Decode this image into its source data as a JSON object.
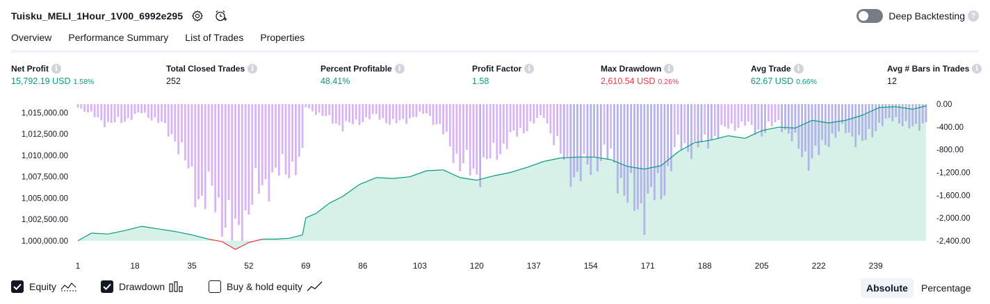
{
  "header": {
    "strategy_title": "Tuisku_MELI_1Hour_1V00_6992e295",
    "deep_backtesting_label": "Deep Backtesting",
    "help_glyph": "?"
  },
  "tabs": [
    {
      "label": "Overview",
      "active": true
    },
    {
      "label": "Performance Summary",
      "active": false
    },
    {
      "label": "List of Trades",
      "active": false
    },
    {
      "label": "Properties",
      "active": false
    }
  ],
  "metrics": [
    {
      "label": "Net Profit",
      "value": "15,792.19 USD",
      "pct": "1.58%",
      "tone": "pos"
    },
    {
      "label": "Total Closed Trades",
      "value": "252",
      "pct": "",
      "tone": "neutral"
    },
    {
      "label": "Percent Profitable",
      "value": "48.41%",
      "pct": "",
      "tone": "pos"
    },
    {
      "label": "Profit Factor",
      "value": "1.58",
      "pct": "",
      "tone": "pos"
    },
    {
      "label": "Max Drawdown",
      "value": "2,610.54 USD",
      "pct": "0.26%",
      "tone": "neg"
    },
    {
      "label": "Avg Trade",
      "value": "62.67 USD",
      "pct": "0.66%",
      "tone": "pos"
    },
    {
      "label": "Avg # Bars in Trades",
      "value": "12",
      "pct": "",
      "tone": "neutral"
    }
  ],
  "chart_data": {
    "type": "area",
    "x_ticks": [
      "1",
      "18",
      "35",
      "52",
      "69",
      "86",
      "103",
      "120",
      "137",
      "154",
      "171",
      "188",
      "205",
      "222",
      "239"
    ],
    "left_axis_ticks": [
      "1,015,000.00",
      "1,012,500.00",
      "1,010,000.00",
      "1,007,500.00",
      "1,005,000.00",
      "1,002,500.00",
      "1,000,000.00"
    ],
    "right_axis_ticks": [
      "0.00",
      "-400.00",
      "-800.00",
      "-1,200.00",
      "-1,600.00",
      "-2,000.00",
      "-2,400.00"
    ],
    "equity_ylim": [
      1000000,
      1016000
    ],
    "drawdown_ylim": [
      -2400,
      0
    ],
    "equity_color": "#089981",
    "equity_loss_color": "#f23645",
    "equity_fill": "#d2efe6",
    "drawdown_color": "#d8b4f4",
    "drawdown_overlap_color": "#b3b3ea",
    "series": [
      {
        "name": "Equity",
        "x": [
          1,
          5,
          10,
          15,
          20,
          25,
          30,
          35,
          40,
          44,
          48,
          52,
          56,
          60,
          64,
          68,
          69,
          72,
          76,
          80,
          85,
          90,
          95,
          100,
          105,
          110,
          115,
          120,
          125,
          130,
          135,
          140,
          145,
          150,
          155,
          160,
          165,
          170,
          175,
          180,
          185,
          190,
          195,
          200,
          205,
          210,
          215,
          220,
          225,
          230,
          235,
          240,
          245,
          250,
          254
        ],
        "values": [
          1000000,
          1000900,
          1000800,
          1001200,
          1001700,
          1001400,
          1001100,
          1000700,
          1000200,
          999900,
          999000,
          999800,
          1000200,
          1000200,
          1000300,
          1000700,
          1002700,
          1003200,
          1004400,
          1005200,
          1006600,
          1007400,
          1007300,
          1007500,
          1008200,
          1008300,
          1007400,
          1007100,
          1007600,
          1008000,
          1008600,
          1009300,
          1009700,
          1009800,
          1009800,
          1009500,
          1008700,
          1008400,
          1008800,
          1010400,
          1011500,
          1011800,
          1012300,
          1012000,
          1012900,
          1013300,
          1013200,
          1014100,
          1013800,
          1014100,
          1014700,
          1015600,
          1015700,
          1015400,
          1015800
        ]
      },
      {
        "name": "Drawdown",
        "x": [
          1,
          5,
          10,
          15,
          20,
          25,
          30,
          35,
          38,
          41,
          44,
          48,
          52,
          56,
          60,
          64,
          68,
          69,
          72,
          76,
          80,
          85,
          90,
          95,
          100,
          105,
          110,
          115,
          120,
          125,
          130,
          135,
          140,
          145,
          150,
          155,
          160,
          165,
          170,
          175,
          180,
          185,
          190,
          195,
          200,
          205,
          210,
          215,
          220,
          225,
          230,
          235,
          240,
          245,
          250,
          254
        ],
        "values": [
          -50,
          -180,
          -350,
          -280,
          -150,
          -300,
          -600,
          -1300,
          -1700,
          -1550,
          -1900,
          -2400,
          -1800,
          -1400,
          -1250,
          -1100,
          -1000,
          -50,
          -150,
          -250,
          -400,
          -300,
          -200,
          -350,
          -250,
          -150,
          -500,
          -1050,
          -1200,
          -900,
          -600,
          -400,
          -200,
          -900,
          -1300,
          -1000,
          -900,
          -1700,
          -1800,
          -1500,
          -700,
          -800,
          -600,
          -400,
          -350,
          -500,
          -300,
          -700,
          -1000,
          -600,
          -450,
          -700,
          -350,
          -250,
          -450,
          -300
        ]
      }
    ]
  },
  "footer": {
    "legend": [
      {
        "label": "Equity",
        "checked": true,
        "icon": "equity-area-icon"
      },
      {
        "label": "Drawdown",
        "checked": true,
        "icon": "drawdown-bars-icon"
      },
      {
        "label": "Buy & hold equity",
        "checked": false,
        "icon": "buy-hold-line-icon"
      }
    ],
    "modes": [
      {
        "label": "Absolute",
        "active": true
      },
      {
        "label": "Percentage",
        "active": false
      }
    ]
  }
}
